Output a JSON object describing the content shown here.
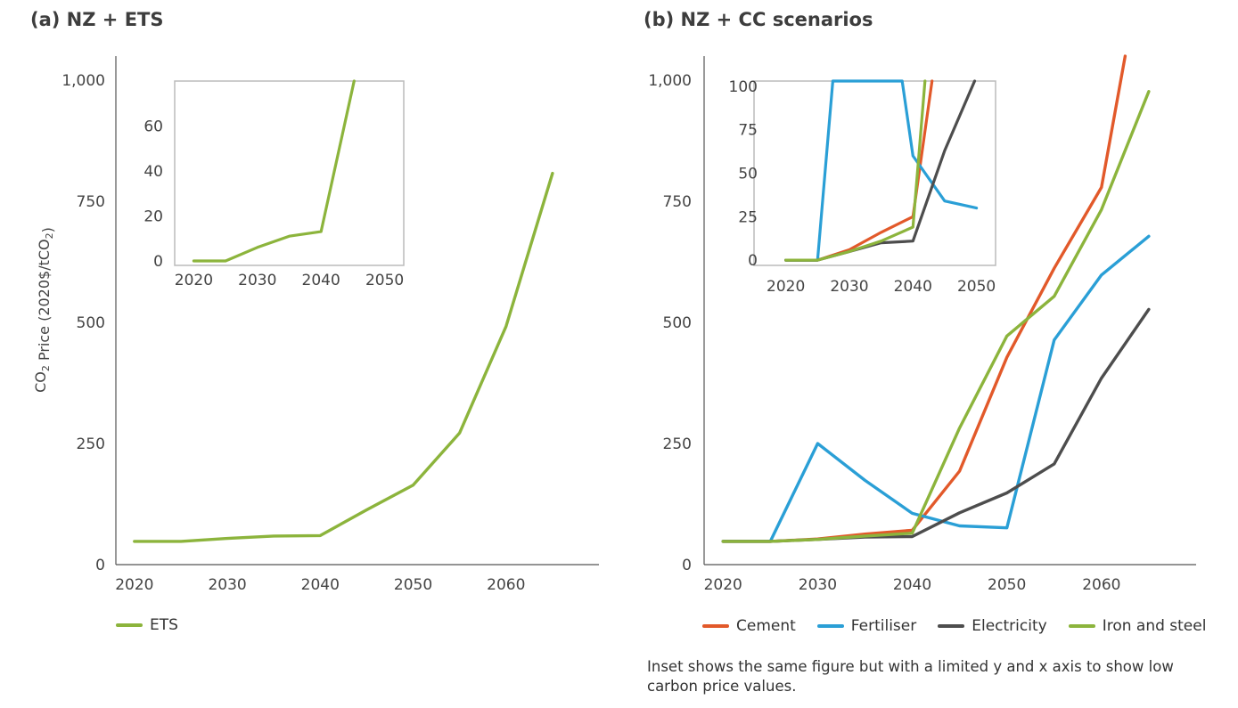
{
  "panels": {
    "a_title": "(a) NZ + ETS",
    "b_title": "(b) NZ + CC scenarios"
  },
  "y_axis_label": "CO₂ Price (2020$/tCO₂)",
  "note": "Inset shows the same figure but with a limited y and x axis to show low carbon price values.",
  "colors": {
    "ets": "#8cb43c",
    "cement": "#e2592a",
    "fertiliser": "#2a9fd6",
    "electricity": "#4d4d4d",
    "iron_steel": "#8cb43c",
    "axis": "#555555",
    "inset_border": "#bbbbbb"
  },
  "chart_data": [
    {
      "id": "a",
      "type": "line",
      "title": "(a) NZ + ETS",
      "ylabel": "CO₂ Price (2020$/tCO₂)",
      "xlim": [
        2018,
        2070
      ],
      "ylim": [
        0,
        1050
      ],
      "x_ticks": [
        2020,
        2030,
        2040,
        2050,
        2060
      ],
      "y_ticks": [
        0,
        250,
        500,
        750,
        1000
      ],
      "y_tick_labels": [
        "0",
        "250",
        "500",
        "750",
        "1,000"
      ],
      "x": [
        2020,
        2025,
        2030,
        2035,
        2040,
        2045,
        2050,
        2055,
        2060,
        2065
      ],
      "series": [
        {
          "name": "ETS",
          "color_key": "ets",
          "values": [
            48,
            48,
            54,
            59,
            60,
            113,
            164,
            272,
            492,
            808
          ]
        }
      ],
      "legend": "bottom-left",
      "inset": {
        "xlim": [
          2017,
          2053
        ],
        "ylim": [
          -2,
          80
        ],
        "x_ticks": [
          2020,
          2030,
          2040,
          2050
        ],
        "y_ticks": [
          0,
          20,
          40,
          60
        ],
        "series": [
          {
            "color_key": "ets",
            "points": [
              [
                2020,
                0
              ],
              [
                2025,
                0
              ],
              [
                2030,
                6
              ],
              [
                2035,
                11
              ],
              [
                2040,
                13
              ],
              [
                2045.2,
                80
              ]
            ]
          }
        ]
      }
    },
    {
      "id": "b",
      "type": "line",
      "title": "(b) NZ + CC scenarios",
      "xlim": [
        2018,
        2070
      ],
      "ylim": [
        0,
        1050
      ],
      "x_ticks": [
        2020,
        2030,
        2040,
        2050,
        2060
      ],
      "y_ticks": [
        0,
        250,
        500,
        750,
        1000
      ],
      "y_tick_labels": [
        "0",
        "250",
        "500",
        "750",
        "1,000"
      ],
      "series": [
        {
          "name": "Cement",
          "color_key": "cement",
          "points": [
            [
              2020,
              48
            ],
            [
              2025,
              48
            ],
            [
              2030,
              53
            ],
            [
              2035,
              63
            ],
            [
              2040,
              71
            ],
            [
              2045,
              193
            ],
            [
              2050,
              428
            ],
            [
              2055,
              612
            ],
            [
              2060,
              779
            ],
            [
              2062.5,
              1050
            ]
          ]
        },
        {
          "name": "Fertiliser",
          "color_key": "fertiliser",
          "points": [
            [
              2020,
              48
            ],
            [
              2025,
              48
            ],
            [
              2030,
              250
            ],
            [
              2035,
              174
            ],
            [
              2040,
              106
            ],
            [
              2045,
              80
            ],
            [
              2050,
              76
            ],
            [
              2055,
              464
            ],
            [
              2060,
              598
            ],
            [
              2065,
              678
            ]
          ]
        },
        {
          "name": "Electricity",
          "color_key": "electricity",
          "points": [
            [
              2020,
              48
            ],
            [
              2025,
              48
            ],
            [
              2030,
              52
            ],
            [
              2035,
              57
            ],
            [
              2040,
              58
            ],
            [
              2045,
              107
            ],
            [
              2050,
              148
            ],
            [
              2055,
              208
            ],
            [
              2060,
              385
            ],
            [
              2065,
              527
            ]
          ]
        },
        {
          "name": "Iron and steel",
          "color_key": "iron_steel",
          "points": [
            [
              2020,
              48
            ],
            [
              2025,
              48
            ],
            [
              2030,
              52
            ],
            [
              2035,
              59
            ],
            [
              2040,
              65
            ],
            [
              2045,
              282
            ],
            [
              2050,
              472
            ],
            [
              2055,
              554
            ],
            [
              2060,
              733
            ],
            [
              2065,
              977
            ]
          ]
        }
      ],
      "legend": "bottom",
      "inset": {
        "xlim": [
          2015,
          2053
        ],
        "ylim": [
          -3,
          103
        ],
        "x_ticks": [
          2020,
          2030,
          2040,
          2050
        ],
        "y_ticks": [
          0,
          25,
          50,
          75,
          100
        ],
        "series": [
          {
            "color_key": "cement",
            "points": [
              [
                2020,
                0
              ],
              [
                2025,
                0
              ],
              [
                2030,
                6
              ],
              [
                2035,
                16
              ],
              [
                2040,
                25
              ],
              [
                2043,
                103
              ]
            ]
          },
          {
            "color_key": "fertiliser",
            "points": [
              [
                2020,
                0
              ],
              [
                2025,
                0
              ],
              [
                2027.4,
                103
              ],
              [
                2038.3,
                103
              ],
              [
                2040,
                60
              ],
              [
                2045,
                34
              ],
              [
                2050,
                30
              ]
            ]
          },
          {
            "color_key": "electricity",
            "points": [
              [
                2020,
                0
              ],
              [
                2025,
                0
              ],
              [
                2030,
                5
              ],
              [
                2035,
                10
              ],
              [
                2040,
                11
              ],
              [
                2045,
                63
              ],
              [
                2049.7,
                103
              ]
            ]
          },
          {
            "color_key": "iron_steel",
            "points": [
              [
                2020,
                0
              ],
              [
                2025,
                0
              ],
              [
                2030,
                5
              ],
              [
                2035,
                11
              ],
              [
                2040,
                19
              ],
              [
                2041.9,
                103
              ]
            ]
          }
        ]
      }
    }
  ]
}
